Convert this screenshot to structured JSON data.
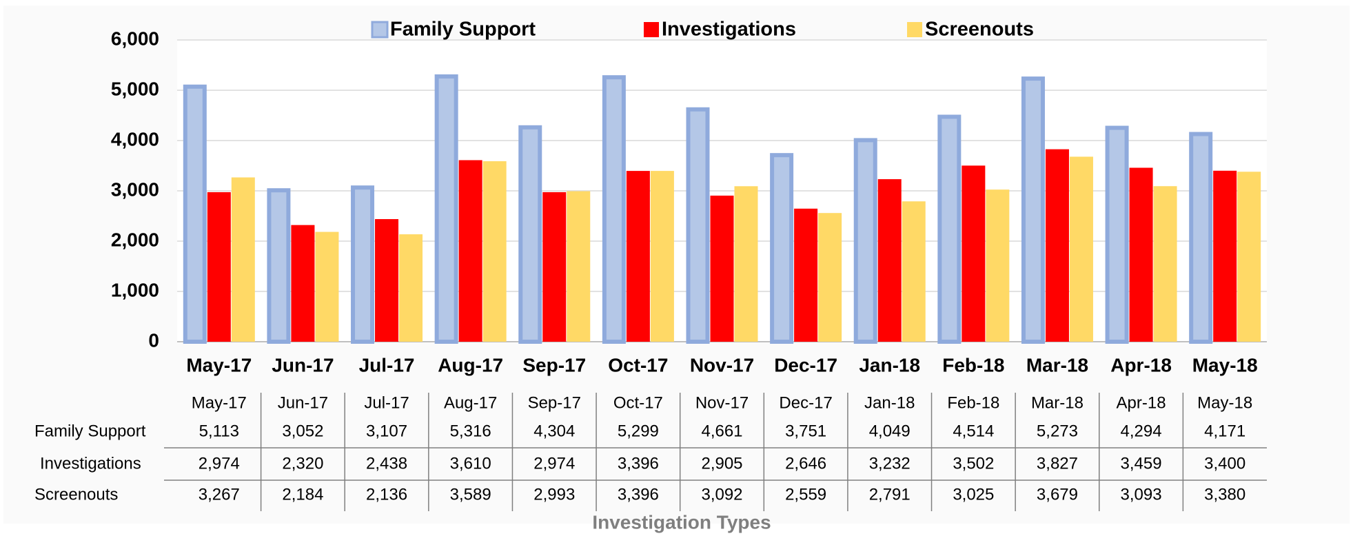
{
  "chart_data": {
    "type": "bar",
    "x_label": "Investigation Types",
    "categories": [
      "May-17",
      "Jun-17",
      "Jul-17",
      "Aug-17",
      "Sep-17",
      "Oct-17",
      "Nov-17",
      "Dec-17",
      "Jan-18",
      "Feb-18",
      "Mar-18",
      "Apr-18",
      "May-18"
    ],
    "series": [
      {
        "name": "Family Support",
        "color": "#b4c7e7",
        "values": [
          5113,
          3052,
          3107,
          5316,
          4304,
          5299,
          4661,
          3751,
          4049,
          4514,
          5273,
          4294,
          4171
        ],
        "value_labels": [
          "5,113",
          "3,052",
          "3,107",
          "5,316",
          "4,304",
          "5,299",
          "4,661",
          "3,751",
          "4,049",
          "4,514",
          "5,273",
          "4,294",
          "4,171"
        ]
      },
      {
        "name": "Investigations",
        "color": "#ff0000",
        "values": [
          2974,
          2320,
          2438,
          3610,
          2974,
          3396,
          2905,
          2646,
          3232,
          3502,
          3827,
          3459,
          3400
        ],
        "value_labels": [
          "2,974",
          "2,320",
          "2,438",
          "3,610",
          "2,974",
          "3,396",
          "2,905",
          "2,646",
          "3,232",
          "3,502",
          "3,827",
          "3,459",
          "3,400"
        ]
      },
      {
        "name": "Screenouts",
        "color": "#ffd966",
        "values": [
          3267,
          2184,
          2136,
          3589,
          2993,
          3396,
          3092,
          2559,
          2791,
          3025,
          3679,
          3093,
          3380
        ],
        "value_labels": [
          "3,267",
          "2,184",
          "2,136",
          "3,589",
          "2,993",
          "3,396",
          "3,092",
          "2,559",
          "2,791",
          "3,025",
          "3,679",
          "3,093",
          "3,380"
        ]
      }
    ],
    "ylim": [
      0,
      6000
    ],
    "yticks": [
      0,
      {
        "value": 1000,
        "label": "1,000"
      },
      {
        "value": 2000,
        "label": "2,000"
      },
      {
        "value": 3000,
        "label": "3,000"
      },
      {
        "value": 4000,
        "label": "4,000"
      },
      {
        "value": 5000,
        "label": "5,000"
      },
      {
        "value": 6000,
        "label": "6,000"
      }
    ],
    "grid": true,
    "legend": "top"
  }
}
